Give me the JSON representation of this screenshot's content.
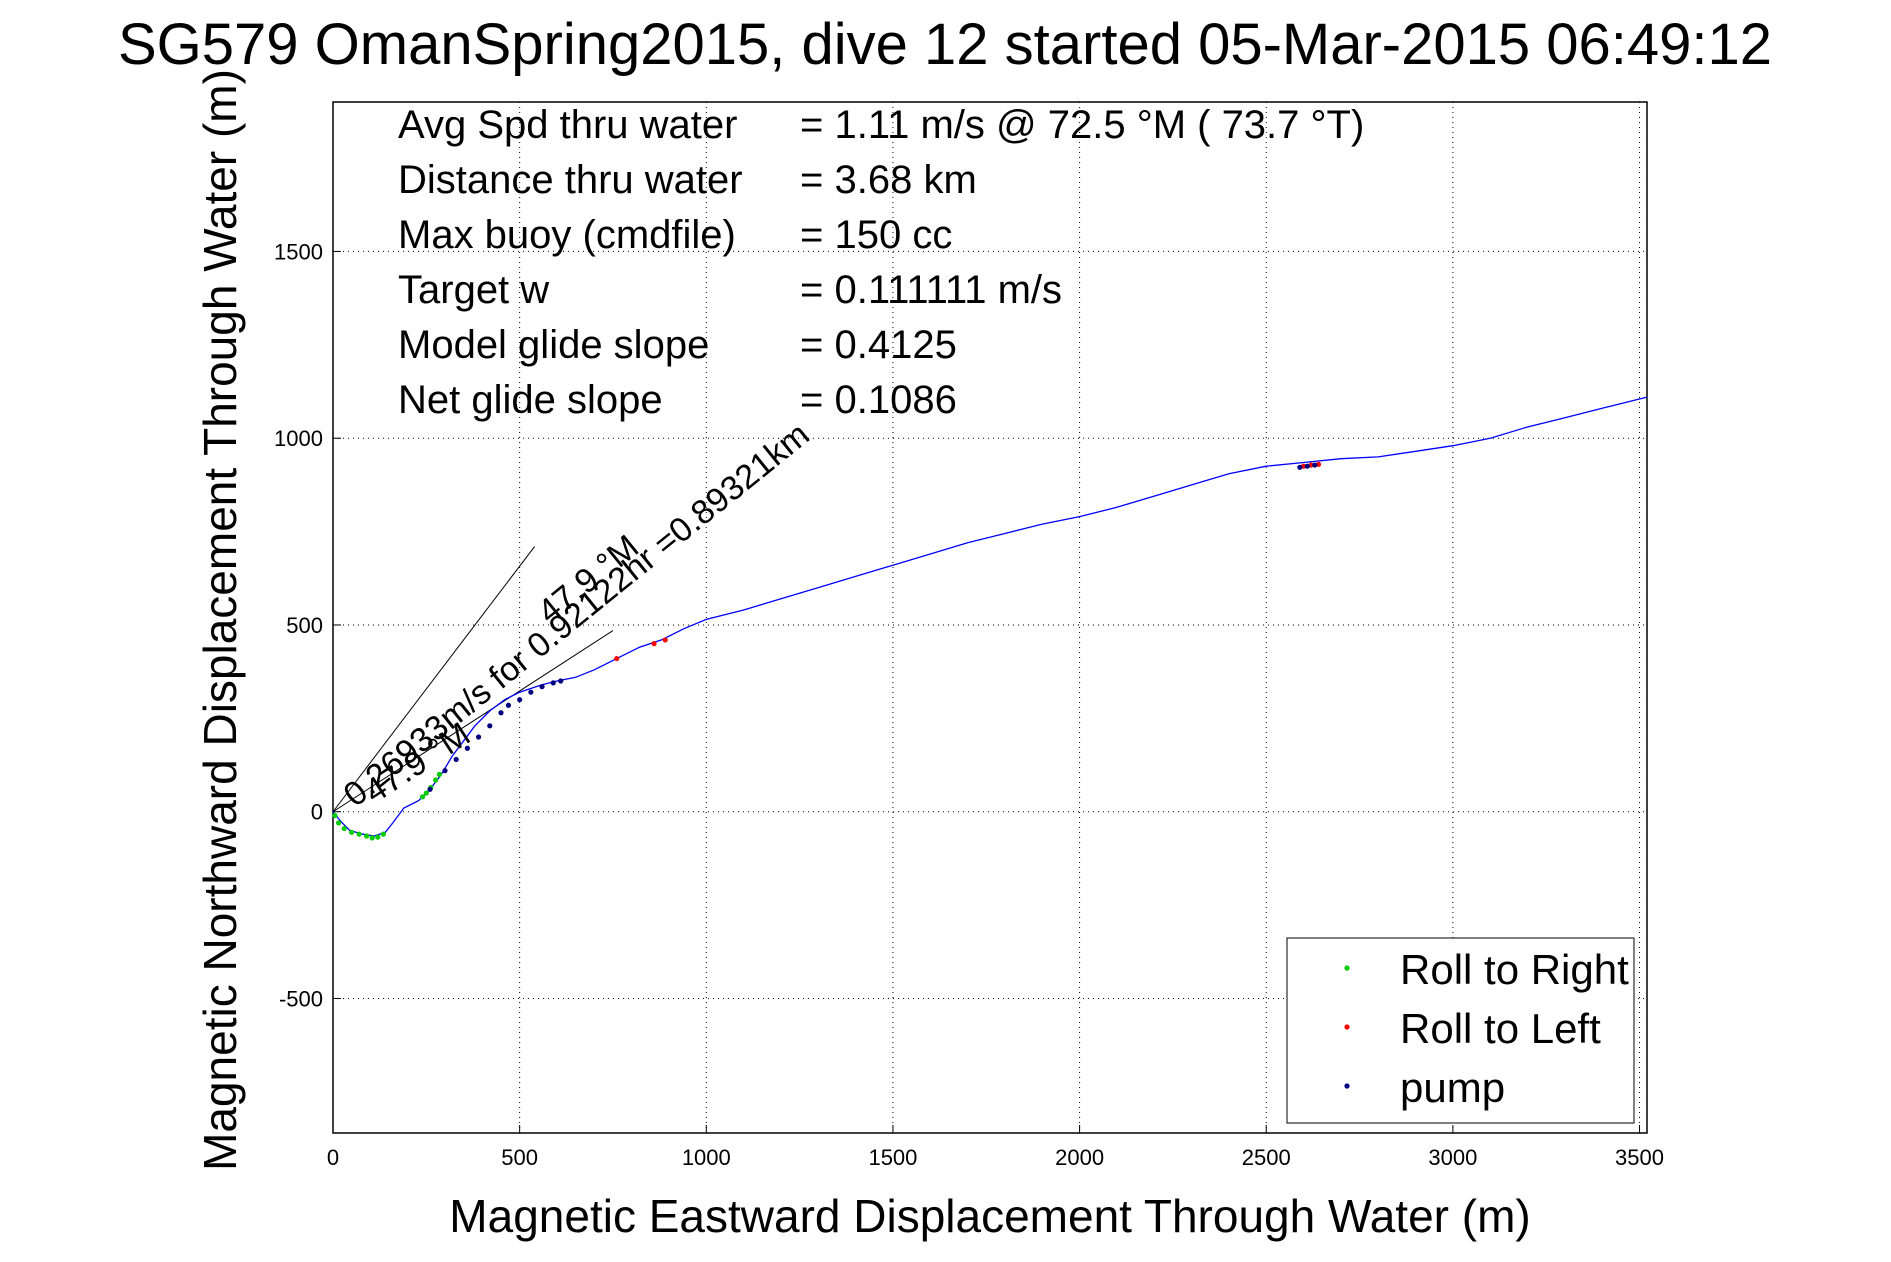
{
  "chart_data": {
    "type": "line",
    "title": "SG579 OmanSpring2015, dive 12 started 05-Mar-2015 06:49:12",
    "xlabel": "Magnetic Eastward Displacement Through Water (m)",
    "ylabel": "Magnetic Northward Displacement Through Water (m)",
    "xlim": [
      0,
      3520
    ],
    "ylim": [
      -860,
      1900
    ],
    "xticks": [
      0,
      500,
      1000,
      1500,
      2000,
      2500,
      3000,
      3500
    ],
    "yticks": [
      -500,
      0,
      500,
      1000,
      1500
    ],
    "xtick_labels": [
      "0",
      "500",
      "1000",
      "1500",
      "2000",
      "2500",
      "3000",
      "3500"
    ],
    "ytick_labels": [
      "-500",
      "0",
      "500",
      "1000",
      "1500"
    ],
    "grid": true,
    "legend_position": "bottom-right",
    "colors": {
      "track": "#0000ff",
      "roll_right": "#00cc00",
      "roll_left": "#ff0000",
      "pump": "#000080"
    },
    "info": [
      {
        "label": "Avg Spd thru water",
        "value": "=  1.11 m/s @  72.5 °M ( 73.7 °T)"
      },
      {
        "label": "Distance thru water",
        "value": "=  3.68 km"
      },
      {
        "label": "Max buoy (cmdfile)",
        "value": "= 150 cc"
      },
      {
        "label": "Target w",
        "value": "= 0.111111 m/s"
      },
      {
        "label": "Model glide slope",
        "value": "= 0.4125"
      },
      {
        "label": "Net glide slope",
        "value": "= 0.1086"
      }
    ],
    "annotations": [
      {
        "text": "0.26933m/s for 0.92122hr =0.89321km",
        "heading": "47.9 °M"
      },
      {
        "text": "47.9 °M"
      }
    ],
    "series": [
      {
        "name": "",
        "x": [
          0,
          20,
          45,
          80,
          110,
          140,
          160,
          190,
          230,
          260,
          290,
          320,
          350,
          380,
          420,
          460,
          500,
          560,
          600,
          650,
          700,
          760,
          820,
          880,
          940,
          1000,
          1100,
          1200,
          1300,
          1400,
          1500,
          1600,
          1700,
          1800,
          1900,
          2000,
          2100,
          2200,
          2300,
          2400,
          2500,
          2600,
          2700,
          2800,
          2900,
          3000,
          3100,
          3200,
          3300,
          3400,
          3520
        ],
        "y": [
          0,
          -25,
          -50,
          -60,
          -65,
          -55,
          -30,
          10,
          30,
          60,
          100,
          150,
          190,
          230,
          270,
          300,
          320,
          340,
          350,
          360,
          380,
          410,
          440,
          460,
          490,
          515,
          540,
          570,
          600,
          630,
          660,
          690,
          720,
          745,
          770,
          790,
          815,
          845,
          875,
          905,
          925,
          935,
          945,
          950,
          965,
          980,
          1000,
          1030,
          1055,
          1080,
          1110
        ]
      }
    ],
    "markers": {
      "roll_right": {
        "x": [
          5,
          15,
          30,
          50,
          70,
          90,
          105,
          120,
          135,
          240,
          250,
          262,
          275,
          285
        ],
        "y": [
          -10,
          -30,
          -45,
          -55,
          -60,
          -65,
          -70,
          -68,
          -60,
          40,
          50,
          65,
          85,
          100
        ]
      },
      "roll_left": {
        "x": [
          760,
          860,
          890,
          2600,
          2620,
          2640
        ],
        "y": [
          410,
          450,
          460,
          925,
          928,
          930
        ]
      },
      "pump": {
        "x": [
          260,
          300,
          330,
          360,
          390,
          420,
          450,
          470,
          500,
          530,
          560,
          590,
          610,
          2590,
          2610,
          2630
        ],
        "y": [
          60,
          110,
          140,
          170,
          200,
          230,
          265,
          285,
          300,
          320,
          335,
          345,
          350,
          922,
          925,
          928
        ]
      }
    },
    "reference_lines": [
      {
        "x": [
          0,
          540
        ],
        "y": [
          0,
          710
        ]
      },
      {
        "x": [
          0,
          750
        ],
        "y": [
          0,
          485
        ]
      }
    ],
    "legend": [
      {
        "label": "Roll to Right",
        "color": "#00cc00"
      },
      {
        "label": "Roll to Left",
        "color": "#ff0000"
      },
      {
        "label": "pump",
        "color": "#000080"
      }
    ]
  }
}
